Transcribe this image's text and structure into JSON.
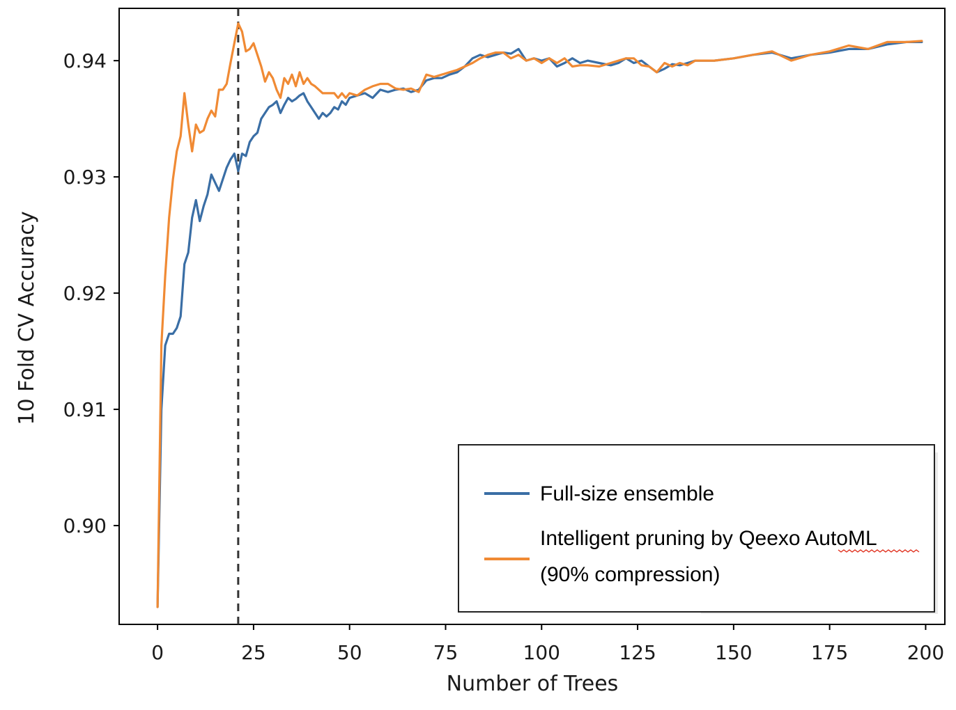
{
  "chart_data": {
    "type": "line",
    "title": "",
    "xlabel": "Number of Trees",
    "ylabel": "10 Fold CV Accuracy",
    "xlim": [
      -10,
      205
    ],
    "ylim": [
      0.8915,
      0.9445
    ],
    "xticks": [
      0,
      25,
      50,
      75,
      100,
      125,
      150,
      175,
      200
    ],
    "yticks": [
      0.9,
      0.91,
      0.92,
      0.93,
      0.94
    ],
    "ytick_labels": [
      "0.90",
      "0.91",
      "0.92",
      "0.93",
      "0.94"
    ],
    "grid": false,
    "legend_position": "bottom-right",
    "vline": {
      "x": 21,
      "style": "dashed",
      "color": "#333333"
    },
    "legend": [
      {
        "label": "Full-size ensemble",
        "color": "#3a6ea5"
      },
      {
        "label": "Intelligent pruning by Qeexo AutoML (90% compression)",
        "lines": [
          "Intelligent pruning by Qeexo AutoML",
          "(90% compression)"
        ],
        "color": "#f08a34"
      }
    ],
    "series": [
      {
        "name": "Full-size ensemble",
        "color": "#3a6ea5",
        "x": [
          0,
          1,
          2,
          3,
          4,
          5,
          6,
          7,
          8,
          9,
          10,
          11,
          12,
          13,
          14,
          15,
          16,
          17,
          18,
          19,
          20,
          21,
          22,
          23,
          24,
          25,
          26,
          27,
          28,
          29,
          30,
          31,
          32,
          33,
          34,
          35,
          36,
          37,
          38,
          39,
          40,
          41,
          42,
          43,
          44,
          45,
          46,
          47,
          48,
          49,
          50,
          52,
          54,
          56,
          58,
          60,
          62,
          64,
          66,
          68,
          70,
          72,
          74,
          76,
          78,
          80,
          82,
          84,
          86,
          88,
          90,
          92,
          94,
          96,
          98,
          100,
          102,
          104,
          106,
          108,
          110,
          112,
          115,
          118,
          120,
          122,
          124,
          126,
          128,
          130,
          132,
          134,
          136,
          138,
          140,
          145,
          150,
          155,
          160,
          165,
          170,
          175,
          180,
          185,
          190,
          195,
          199
        ],
        "values": [
          0.893,
          0.91,
          0.9155,
          0.9165,
          0.9165,
          0.917,
          0.918,
          0.9225,
          0.9235,
          0.9265,
          0.928,
          0.9262,
          0.9275,
          0.9285,
          0.9302,
          0.9295,
          0.9288,
          0.9298,
          0.9308,
          0.9315,
          0.932,
          0.9305,
          0.932,
          0.9318,
          0.933,
          0.9335,
          0.9338,
          0.935,
          0.9355,
          0.936,
          0.9362,
          0.9365,
          0.9355,
          0.9362,
          0.9368,
          0.9365,
          0.9367,
          0.937,
          0.9372,
          0.9365,
          0.936,
          0.9355,
          0.935,
          0.9355,
          0.9352,
          0.9355,
          0.936,
          0.9358,
          0.9365,
          0.9362,
          0.9368,
          0.937,
          0.9372,
          0.9368,
          0.9375,
          0.9373,
          0.9375,
          0.9376,
          0.9373,
          0.9375,
          0.9383,
          0.9385,
          0.9385,
          0.9388,
          0.939,
          0.9395,
          0.9402,
          0.9405,
          0.9403,
          0.9405,
          0.9407,
          0.9406,
          0.941,
          0.94,
          0.9402,
          0.94,
          0.9402,
          0.9395,
          0.9398,
          0.9402,
          0.9398,
          0.94,
          0.9398,
          0.9396,
          0.9398,
          0.9402,
          0.9398,
          0.94,
          0.9395,
          0.939,
          0.9393,
          0.9397,
          0.9396,
          0.9398,
          0.94,
          0.94,
          0.9402,
          0.9405,
          0.9407,
          0.9402,
          0.9405,
          0.9407,
          0.941,
          0.941,
          0.9414,
          0.9416,
          0.9416
        ]
      },
      {
        "name": "Intelligent pruning by Qeexo AutoML (90% compression)",
        "color": "#f08a34",
        "x": [
          0,
          1,
          2,
          3,
          4,
          5,
          6,
          7,
          8,
          9,
          10,
          11,
          12,
          13,
          14,
          15,
          16,
          17,
          18,
          19,
          20,
          21,
          22,
          23,
          24,
          25,
          26,
          27,
          28,
          29,
          30,
          31,
          32,
          33,
          34,
          35,
          36,
          37,
          38,
          39,
          40,
          41,
          42,
          43,
          44,
          45,
          46,
          47,
          48,
          49,
          50,
          52,
          54,
          56,
          58,
          60,
          62,
          64,
          66,
          68,
          70,
          72,
          74,
          76,
          78,
          80,
          82,
          84,
          86,
          88,
          90,
          92,
          94,
          96,
          98,
          100,
          102,
          104,
          106,
          108,
          110,
          112,
          115,
          118,
          120,
          122,
          124,
          126,
          128,
          130,
          132,
          134,
          136,
          138,
          140,
          145,
          150,
          155,
          160,
          165,
          170,
          175,
          180,
          185,
          190,
          195,
          199
        ],
        "values": [
          0.893,
          0.9155,
          0.9215,
          0.9265,
          0.9298,
          0.9322,
          0.9335,
          0.9372,
          0.9345,
          0.9322,
          0.9345,
          0.9338,
          0.934,
          0.935,
          0.9357,
          0.9352,
          0.9375,
          0.9375,
          0.938,
          0.9398,
          0.9415,
          0.9432,
          0.9425,
          0.9408,
          0.941,
          0.9415,
          0.9405,
          0.9395,
          0.9382,
          0.939,
          0.9385,
          0.9375,
          0.9368,
          0.9385,
          0.938,
          0.9388,
          0.9378,
          0.939,
          0.938,
          0.9385,
          0.938,
          0.9378,
          0.9375,
          0.9372,
          0.9372,
          0.9372,
          0.9372,
          0.9368,
          0.9372,
          0.9368,
          0.9372,
          0.937,
          0.9375,
          0.9378,
          0.938,
          0.938,
          0.9376,
          0.9375,
          0.9376,
          0.9373,
          0.9388,
          0.9386,
          0.9388,
          0.939,
          0.9392,
          0.9395,
          0.9398,
          0.9402,
          0.9405,
          0.9407,
          0.9407,
          0.9402,
          0.9405,
          0.94,
          0.9402,
          0.9398,
          0.9402,
          0.9398,
          0.9402,
          0.9395,
          0.9396,
          0.9396,
          0.9395,
          0.9398,
          0.94,
          0.9402,
          0.9402,
          0.9396,
          0.9395,
          0.939,
          0.9398,
          0.9395,
          0.9398,
          0.9396,
          0.94,
          0.94,
          0.9402,
          0.9405,
          0.9408,
          0.94,
          0.9405,
          0.9408,
          0.9413,
          0.941,
          0.9416,
          0.9416,
          0.9417
        ]
      }
    ]
  }
}
